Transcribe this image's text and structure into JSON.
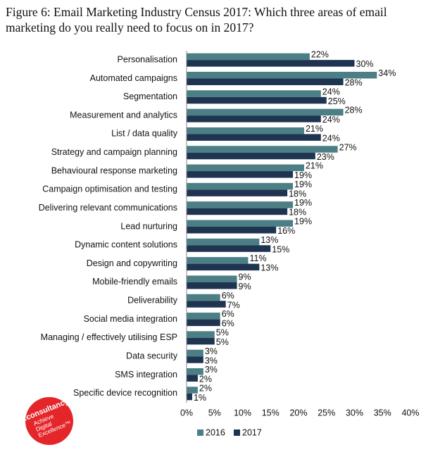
{
  "chart_data": {
    "type": "hbar",
    "title": "Figure 6: Email Marketing Industry Census 2017: Which three areas of email marketing do you really need to focus on in 2017?",
    "categories": [
      "Personalisation",
      "Automated campaigns",
      "Segmentation",
      "Measurement and analytics",
      "List / data quality",
      "Strategy and campaign planning",
      "Behavioural response marketing",
      "Campaign optimisation and testing",
      "Delivering relevant communications",
      "Lead nurturing",
      "Dynamic content solutions",
      "Design and copywriting",
      "Mobile-friendly emails",
      "Deliverability",
      "Social media integration",
      "Managing / effectively utilising ESP",
      "Data security",
      "SMS integration",
      "Specific device recognition"
    ],
    "series": [
      {
        "name": "2016",
        "color": "#4b7f85",
        "values": [
          22,
          34,
          24,
          28,
          21,
          27,
          21,
          19,
          19,
          19,
          13,
          11,
          9,
          6,
          6,
          5,
          3,
          3,
          2
        ],
        "value_labels": [
          "22%",
          "34%",
          "24%",
          "28%",
          "21%",
          "27%",
          "21%",
          "19%",
          "19%",
          "19%",
          "13%",
          "11%",
          "9%",
          "6%",
          "6%",
          "5%",
          "3%",
          "3%",
          "2%"
        ]
      },
      {
        "name": "2017",
        "color": "#1e3450",
        "values": [
          30,
          28,
          25,
          24,
          24,
          23,
          19,
          18,
          18,
          16,
          15,
          13,
          9,
          7,
          6,
          5,
          3,
          2,
          1
        ],
        "value_labels": [
          "30%",
          "28%",
          "25%",
          "24%",
          "24%",
          "23%",
          "19%",
          "18%",
          "18%",
          "16%",
          "15%",
          "13%",
          "9%",
          "7%",
          "6%",
          "5%",
          "3%",
          "2%",
          "1%"
        ]
      }
    ],
    "xlim": [
      0,
      40
    ],
    "xticks": [
      {
        "value": 0,
        "label": "0%"
      },
      {
        "value": 5,
        "label": "5%"
      },
      {
        "value": 10,
        "label": "10%"
      },
      {
        "value": 15,
        "label": "15%"
      },
      {
        "value": 20,
        "label": "20%"
      },
      {
        "value": 25,
        "label": "25%"
      },
      {
        "value": 30,
        "label": "30%"
      },
      {
        "value": 35,
        "label": "35%"
      },
      {
        "value": 40,
        "label": "40%"
      }
    ],
    "grid": false,
    "legend": "bottom"
  },
  "logo": {
    "name": "Econsultancy",
    "tagline": [
      "Achieve",
      "Digital",
      "Excellence™"
    ]
  }
}
